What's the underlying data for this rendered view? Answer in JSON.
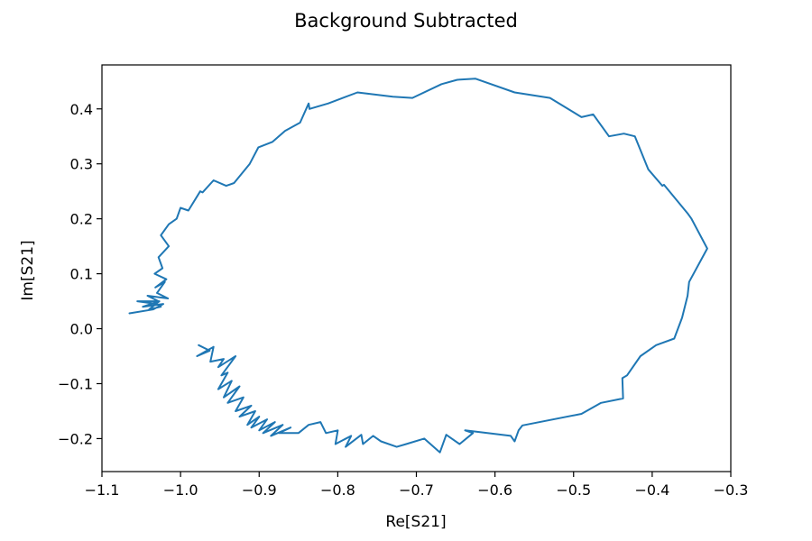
{
  "chart_data": {
    "type": "line",
    "title": "Background Subtracted",
    "xlabel": "Re[S21]",
    "ylabel": "Im[S21]",
    "xlim": [
      -1.1,
      -0.3
    ],
    "ylim": [
      -0.26,
      0.48
    ],
    "grid": false,
    "xticks": [
      -1.1,
      -1.0,
      -0.9,
      -0.8,
      -0.7,
      -0.6,
      -0.5,
      -0.4,
      -0.3
    ],
    "xtick_labels": [
      "−1.1",
      "−1.0",
      "−0.9",
      "−0.8",
      "−0.7",
      "−0.6",
      "−0.5",
      "−0.4",
      "−0.3"
    ],
    "yticks": [
      -0.2,
      -0.1,
      0.0,
      0.1,
      0.2,
      0.3,
      0.4
    ],
    "ytick_labels": [
      "−0.2",
      "−0.1",
      "0.0",
      "0.1",
      "0.2",
      "0.3",
      "0.4"
    ],
    "series": [
      {
        "color": "#1f77b4",
        "x": [
          -0.977,
          -0.963,
          -0.979,
          -0.958,
          -0.962,
          -0.945,
          -0.952,
          -0.93,
          -0.948,
          -0.94,
          -0.952,
          -0.935,
          -0.945,
          -0.925,
          -0.94,
          -0.92,
          -0.93,
          -0.91,
          -0.925,
          -0.905,
          -0.915,
          -0.9,
          -0.91,
          -0.89,
          -0.9,
          -0.88,
          -0.895,
          -0.87,
          -0.885,
          -0.86,
          -0.875,
          -0.85,
          -0.837,
          -0.822,
          -0.815,
          -0.8,
          -0.803,
          -0.783,
          -0.79,
          -0.77,
          -0.768,
          -0.755,
          -0.745,
          -0.725,
          -0.713,
          -0.69,
          -0.67,
          -0.662,
          -0.645,
          -0.628,
          -0.638,
          -0.58,
          -0.575,
          -0.57,
          -0.565,
          -0.49,
          -0.465,
          -0.437,
          -0.438,
          -0.432,
          -0.415,
          -0.395,
          -0.372,
          -0.362,
          -0.355,
          -0.353,
          -0.33,
          -0.35,
          -0.355,
          -0.385,
          -0.387,
          -0.405,
          -0.422,
          -0.436,
          -0.455,
          -0.475,
          -0.49,
          -0.53,
          -0.575,
          -0.625,
          -0.648,
          -0.668,
          -0.705,
          -0.73,
          -0.775,
          -0.812,
          -0.836,
          -0.837,
          -0.848,
          -0.867,
          -0.883,
          -0.901,
          -0.912,
          -0.932,
          -0.942,
          -0.958,
          -0.972,
          -0.975,
          -0.99,
          -1.0,
          -1.005,
          -1.015,
          -1.025,
          -1.015,
          -1.028,
          -1.023,
          -1.033,
          -1.018,
          -1.032,
          -1.02,
          -1.03,
          -1.016,
          -1.042,
          -1.028,
          -1.055,
          -1.03,
          -1.025,
          -1.04,
          -1.027,
          -1.048,
          -1.022,
          -1.035,
          -1.065
        ],
        "y": [
          -0.03,
          -0.04,
          -0.05,
          -0.033,
          -0.06,
          -0.055,
          -0.07,
          -0.05,
          -0.085,
          -0.08,
          -0.11,
          -0.095,
          -0.125,
          -0.105,
          -0.135,
          -0.125,
          -0.15,
          -0.14,
          -0.16,
          -0.15,
          -0.175,
          -0.16,
          -0.18,
          -0.165,
          -0.185,
          -0.17,
          -0.19,
          -0.175,
          -0.195,
          -0.18,
          -0.19,
          -0.19,
          -0.175,
          -0.17,
          -0.19,
          -0.185,
          -0.21,
          -0.195,
          -0.215,
          -0.193,
          -0.21,
          -0.195,
          -0.205,
          -0.215,
          -0.21,
          -0.2,
          -0.225,
          -0.193,
          -0.21,
          -0.19,
          -0.185,
          -0.195,
          -0.205,
          -0.185,
          -0.176,
          -0.155,
          -0.135,
          -0.127,
          -0.09,
          -0.085,
          -0.05,
          -0.03,
          -0.018,
          0.02,
          0.06,
          0.085,
          0.146,
          0.2,
          0.21,
          0.262,
          0.26,
          0.29,
          0.35,
          0.355,
          0.35,
          0.39,
          0.385,
          0.42,
          0.43,
          0.455,
          0.453,
          0.445,
          0.42,
          0.422,
          0.43,
          0.41,
          0.4,
          0.41,
          0.375,
          0.36,
          0.34,
          0.33,
          0.3,
          0.265,
          0.26,
          0.27,
          0.248,
          0.25,
          0.215,
          0.22,
          0.2,
          0.19,
          0.17,
          0.15,
          0.13,
          0.11,
          0.1,
          0.09,
          0.075,
          0.085,
          0.065,
          0.055,
          0.06,
          0.05,
          0.05,
          0.045,
          0.04,
          0.035,
          0.05,
          0.04,
          0.045,
          0.035,
          0.028
        ]
      }
    ]
  }
}
